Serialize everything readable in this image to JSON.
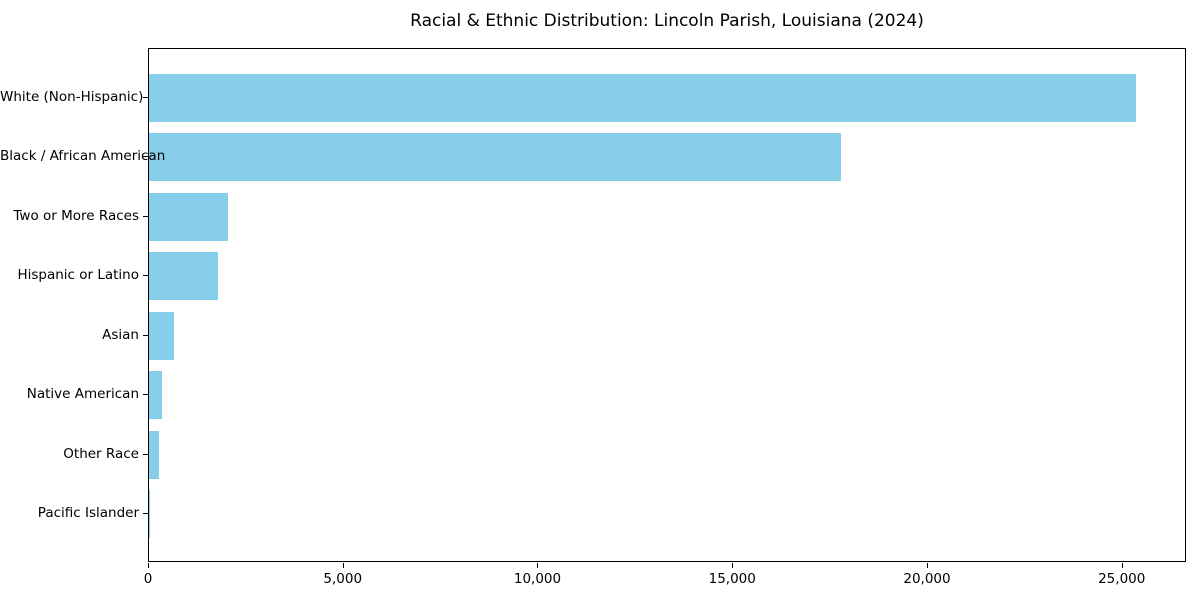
{
  "figure": {
    "background": "#ffffff"
  },
  "chart_data": {
    "type": "bar",
    "orientation": "horizontal",
    "title": "Racial & Ethnic Distribution: Lincoln Parish, Louisiana (2024)",
    "categories": [
      "White (Non-Hispanic)",
      "Black / African American",
      "Two or More Races",
      "Hispanic or Latino",
      "Asian",
      "Native American",
      "Other Race",
      "Pacific Islander"
    ],
    "values": [
      25390,
      17800,
      2030,
      1770,
      640,
      330,
      250,
      20
    ],
    "xlabel": "",
    "ylabel": "",
    "xlim": [
      0,
      26650
    ],
    "xticks": [
      0,
      5000,
      10000,
      15000,
      20000,
      25000
    ],
    "xtick_labels": [
      "0",
      "5,000",
      "10,000",
      "15,000",
      "20,000",
      "25,000"
    ],
    "bar_color": "#87CEEB",
    "spine_color": "#000000",
    "grid": false,
    "legend": null
  }
}
